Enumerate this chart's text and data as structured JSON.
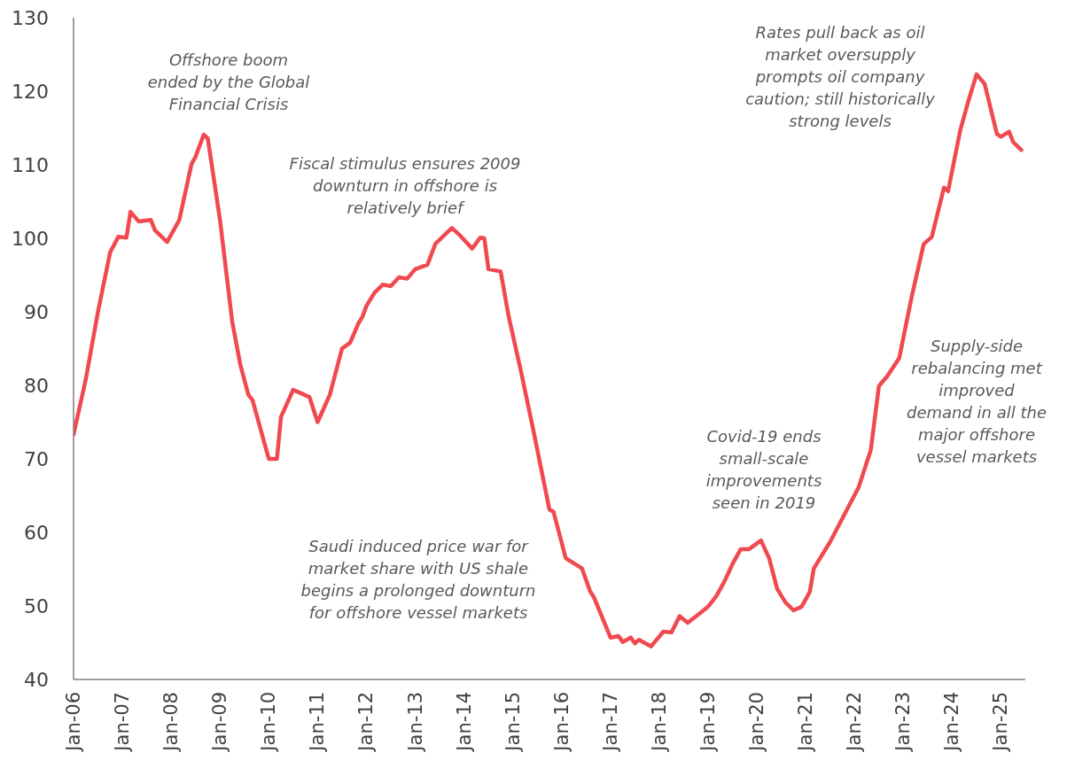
{
  "chart_data": {
    "type": "line",
    "color": "#f04a50",
    "marker": "none",
    "line_style": "solid",
    "x": [
      "2006-01",
      "2006-04",
      "2006-07",
      "2006-10",
      "2006-12",
      "2007-02",
      "2007-03",
      "2007-05",
      "2007-08",
      "2007-09",
      "2007-12",
      "2008-03",
      "2008-06",
      "2008-07",
      "2008-09",
      "2008-10",
      "2009-01",
      "2009-04",
      "2009-06",
      "2009-08",
      "2009-09",
      "2010-01",
      "2010-03",
      "2010-04",
      "2010-07",
      "2010-09",
      "2010-11",
      "2011-01",
      "2011-04",
      "2011-07",
      "2011-09",
      "2011-11",
      "2011-12",
      "2012-01",
      "2012-03",
      "2012-05",
      "2012-07",
      "2012-09",
      "2012-11",
      "2013-01",
      "2013-04",
      "2013-06",
      "2013-07",
      "2013-10",
      "2013-12",
      "2014-03",
      "2014-05",
      "2014-06",
      "2014-07",
      "2014-10",
      "2014-12",
      "2015-03",
      "2015-06",
      "2015-10",
      "2015-11",
      "2016-02",
      "2016-06",
      "2016-08",
      "2016-09",
      "2017-01",
      "2017-03",
      "2017-04",
      "2017-06",
      "2017-07",
      "2017-08",
      "2017-11",
      "2018-02",
      "2018-04",
      "2018-06",
      "2018-08",
      "2018-11",
      "2019-01",
      "2019-03",
      "2019-05",
      "2019-07",
      "2019-09",
      "2019-11",
      "2020-02",
      "2020-04",
      "2020-06",
      "2020-08",
      "2020-10",
      "2020-12",
      "2021-02",
      "2021-03",
      "2021-07",
      "2021-12",
      "2022-02",
      "2022-05",
      "2022-07",
      "2022-09",
      "2022-12",
      "2023-03",
      "2023-06",
      "2023-08",
      "2023-11",
      "2023-12",
      "2024-03",
      "2024-05",
      "2024-07",
      "2024-09",
      "2024-12",
      "2025-01",
      "2025-03",
      "2025-04",
      "2025-06"
    ],
    "values": [
      73.3,
      80.8,
      90.0,
      98.1,
      100.2,
      100.1,
      103.6,
      102.3,
      102.5,
      101.1,
      99.5,
      102.5,
      110.1,
      111.1,
      114.1,
      113.6,
      102.5,
      88.7,
      82.8,
      78.7,
      78.0,
      70.0,
      70.0,
      75.7,
      79.4,
      78.9,
      78.4,
      75.0,
      78.7,
      85.0,
      85.8,
      88.4,
      89.3,
      90.8,
      92.6,
      93.7,
      93.5,
      94.7,
      94.5,
      95.8,
      96.4,
      99.3,
      99.8,
      101.4,
      100.4,
      98.6,
      100.1,
      100.0,
      95.8,
      95.5,
      89.3,
      81.9,
      74.0,
      63.1,
      62.8,
      56.5,
      55.1,
      52.0,
      51.1,
      45.7,
      45.9,
      45.1,
      45.7,
      44.9,
      45.4,
      44.5,
      46.5,
      46.4,
      48.6,
      47.7,
      49.0,
      49.9,
      51.3,
      53.3,
      55.7,
      57.7,
      57.7,
      58.9,
      56.5,
      52.3,
      50.5,
      49.4,
      49.9,
      51.9,
      55.1,
      58.7,
      64.0,
      66.1,
      71.2,
      79.9,
      81.2,
      83.7,
      91.9,
      99.2,
      100.2,
      106.9,
      106.4,
      114.7,
      118.7,
      122.3,
      121.0,
      114.2,
      113.8,
      114.5,
      113.1,
      112.0
    ],
    "xlim": [
      "2006-01",
      "2025-07"
    ],
    "xticks": [
      {
        "value": "2006-01",
        "label": "Jan-06"
      },
      {
        "value": "2007-01",
        "label": "Jan-07"
      },
      {
        "value": "2008-01",
        "label": "Jan-08"
      },
      {
        "value": "2009-01",
        "label": "Jan-09"
      },
      {
        "value": "2010-01",
        "label": "Jan-10"
      },
      {
        "value": "2011-01",
        "label": "Jan-11"
      },
      {
        "value": "2012-01",
        "label": "Jan-12"
      },
      {
        "value": "2013-01",
        "label": "Jan-13"
      },
      {
        "value": "2014-01",
        "label": "Jan-14"
      },
      {
        "value": "2015-01",
        "label": "Jan-15"
      },
      {
        "value": "2016-01",
        "label": "Jan-16"
      },
      {
        "value": "2017-01",
        "label": "Jan-17"
      },
      {
        "value": "2018-01",
        "label": "Jan-18"
      },
      {
        "value": "2019-01",
        "label": "Jan-19"
      },
      {
        "value": "2020-01",
        "label": "Jan-20"
      },
      {
        "value": "2021-01",
        "label": "Jan-21"
      },
      {
        "value": "2022-01",
        "label": "Jan-22"
      },
      {
        "value": "2023-01",
        "label": "Jan-23"
      },
      {
        "value": "2024-01",
        "label": "Jan-24"
      },
      {
        "value": "2025-01",
        "label": "Jan-25"
      }
    ],
    "ylim": [
      40,
      130
    ],
    "yticks": [
      40,
      50,
      60,
      70,
      80,
      90,
      100,
      110,
      120,
      130
    ],
    "annotations": [
      "Offshore boom\nended by the Global\nFinancial Crisis",
      "Fiscal stimulus ensures 2009\ndownturn in offshore is\nrelatively brief",
      "Saudi induced price war for\nmarket share with US shale\nbegins a prolonged downturn\nfor offshore vessel markets",
      "Covid-19 ends\nsmall-scale\nimprovements\nseen in 2019",
      "Rates pull back as oil\nmarket oversupply\nprompts oil company\ncaution; still historically\nstrong levels",
      "Supply-side\nrebalancing met\nimproved\ndemand in all the\nmajor offshore\nvessel markets"
    ]
  }
}
